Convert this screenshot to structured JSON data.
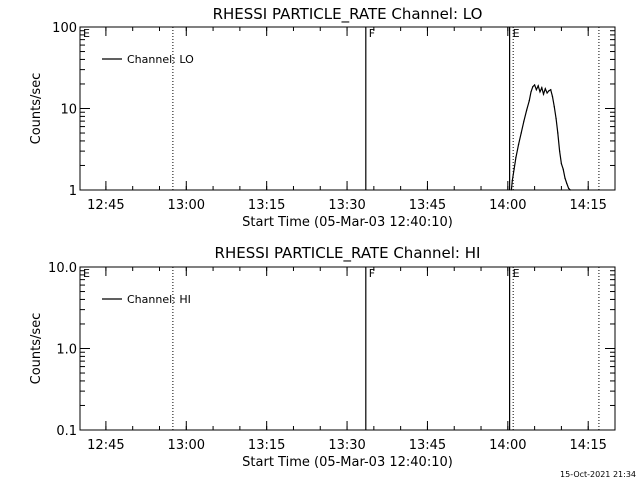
{
  "chart_data": [
    {
      "type": "line",
      "title": "RHESSI PARTICLE_RATE Channel: LO",
      "ylabel": "Counts/sec",
      "xlabel": "Start Time (05-Mar-03 12:40:10)",
      "y_scale": "log",
      "ylim": [
        1,
        100
      ],
      "y_ticks": [
        "1",
        "10",
        "100"
      ],
      "xlim": [
        "12:40:10",
        "14:20:00"
      ],
      "x_ticks": [
        "12:45",
        "13:00",
        "13:15",
        "13:30",
        "13:45",
        "14:00",
        "14:15"
      ],
      "legend": {
        "position": "top-left",
        "entries": [
          "Channel: LO"
        ]
      },
      "markers": [
        {
          "label": "E",
          "time": "12:40:10",
          "style": "none"
        },
        {
          "label": "",
          "time": "12:57:30",
          "style": "dotted"
        },
        {
          "label": "F",
          "time": "13:33:30",
          "style": "solid"
        },
        {
          "label": "E",
          "time": "14:00:20",
          "style": "solid"
        },
        {
          "label": "",
          "time": "14:01:00",
          "style": "dotted"
        },
        {
          "label": "",
          "time": "14:17:00",
          "style": "dotted"
        }
      ],
      "series": [
        {
          "name": "Channel: LO",
          "x": [
            "14:00:40",
            "14:00:50",
            "14:01:10",
            "14:01:30",
            "14:02:00",
            "14:02:30",
            "14:03:00",
            "14:03:30",
            "14:04:00",
            "14:04:20",
            "14:04:40",
            "14:05:00",
            "14:05:20",
            "14:05:40",
            "14:06:00",
            "14:06:20",
            "14:06:40",
            "14:07:00",
            "14:07:20",
            "14:07:40",
            "14:08:00",
            "14:08:20",
            "14:08:40",
            "14:09:00",
            "14:09:20",
            "14:09:40",
            "14:10:00",
            "14:10:20",
            "14:10:40",
            "14:11:00",
            "14:11:20",
            "14:11:40"
          ],
          "y": [
            1.0,
            1.3,
            1.8,
            2.5,
            3.6,
            5.0,
            7.0,
            9.5,
            12.5,
            16.0,
            18.5,
            19.5,
            17.0,
            19.0,
            16.0,
            18.0,
            15.0,
            17.5,
            15.5,
            16.5,
            17.0,
            14.0,
            10.5,
            7.5,
            5.0,
            3.0,
            2.1,
            1.8,
            1.4,
            1.2,
            1.05,
            1.0
          ]
        }
      ]
    },
    {
      "type": "line",
      "title": "RHESSI PARTICLE_RATE Channel: HI",
      "ylabel": "Counts/sec",
      "xlabel": "Start Time (05-Mar-03 12:40:10)",
      "y_scale": "log",
      "ylim": [
        0.1,
        10
      ],
      "y_ticks": [
        "0.1",
        "1.0",
        "10.0"
      ],
      "xlim": [
        "12:40:10",
        "14:20:00"
      ],
      "x_ticks": [
        "12:45",
        "13:00",
        "13:15",
        "13:30",
        "13:45",
        "14:00",
        "14:15"
      ],
      "legend": {
        "position": "top-left",
        "entries": [
          "Channel: HI"
        ]
      },
      "markers": [
        {
          "label": "E",
          "time": "12:40:10",
          "style": "none"
        },
        {
          "label": "",
          "time": "12:57:30",
          "style": "dotted"
        },
        {
          "label": "F",
          "time": "13:33:30",
          "style": "solid"
        },
        {
          "label": "E",
          "time": "14:00:20",
          "style": "solid"
        },
        {
          "label": "",
          "time": "14:01:00",
          "style": "dotted"
        },
        {
          "label": "",
          "time": "14:17:00",
          "style": "dotted"
        }
      ],
      "series": [
        {
          "name": "Channel: HI",
          "x": [],
          "y": []
        }
      ]
    }
  ],
  "footer": {
    "timestamp": "15-Oct-2021 21:34"
  },
  "colors": {
    "background": "#ffffff",
    "axes": "#000000",
    "line": "#000000"
  }
}
